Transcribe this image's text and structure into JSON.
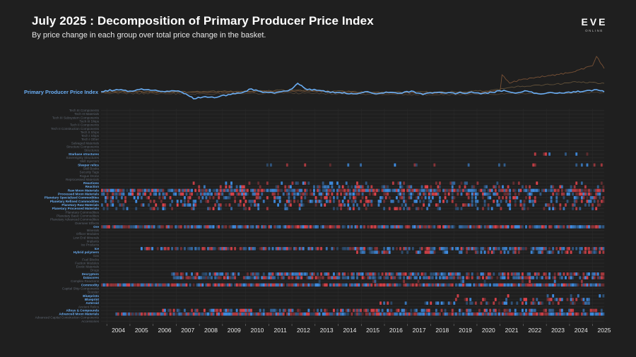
{
  "header": {
    "title": "July 2025 : Decomposition of Primary Producer Price Index",
    "subtitle": "By price change in each group over total price change in the basket.",
    "logo_text": "EVE",
    "logo_subtext": "ONLINE"
  },
  "colors": {
    "background": "#1f1f1f",
    "index_line": "#6aaef5",
    "label_highlight": "#6aaef5",
    "label_dim": "#5d6570",
    "positive": "#e0434b",
    "negative": "#3f8fe6",
    "context_lines": [
      "#8a5a3a",
      "#6f5a3e",
      "#5a4a3a"
    ]
  },
  "chart_data": {
    "type": "heatmap",
    "title": "July 2025 : Decomposition of Primary Producer Price Index",
    "subtitle": "By price change in each group over total price change in the basket.",
    "x": {
      "type": "time",
      "range": [
        "2003-10",
        "2025-07"
      ],
      "ticks": [
        "2004",
        "2005",
        "2006",
        "2007",
        "2008",
        "2009",
        "2010",
        "2011",
        "2012",
        "2013",
        "2014",
        "2015",
        "2016",
        "2017",
        "2018",
        "2019",
        "2020",
        "2021",
        "2022",
        "2023",
        "2024",
        "2025"
      ]
    },
    "index_series": {
      "name": "Primary Producer Price Index",
      "x": [
        "2003-10",
        "2004-06",
        "2005-01",
        "2005-07",
        "2006-01",
        "2006-07",
        "2007-01",
        "2007-06",
        "2007-10",
        "2008-04",
        "2008-10",
        "2009-04",
        "2009-10",
        "2010-04",
        "2010-10",
        "2011-04",
        "2011-10",
        "2012-01",
        "2012-04",
        "2012-09",
        "2013-03",
        "2013-09",
        "2014-03",
        "2014-09",
        "2015-03",
        "2015-09",
        "2016-03",
        "2016-09",
        "2017-03",
        "2017-09",
        "2018-03",
        "2018-09",
        "2019-03",
        "2019-09",
        "2020-03",
        "2020-09",
        "2021-03",
        "2021-09",
        "2022-03",
        "2022-09",
        "2023-03",
        "2023-09",
        "2024-03",
        "2024-09",
        "2025-03",
        "2025-07"
      ],
      "y": [
        100,
        103,
        101,
        104,
        102,
        100,
        101,
        97,
        90,
        93,
        92,
        96,
        98,
        104,
        99,
        98,
        101,
        104,
        112,
        103,
        102,
        99,
        98,
        97,
        100,
        97,
        99,
        98,
        101,
        96,
        99,
        98,
        98,
        99,
        97,
        99,
        102,
        98,
        101,
        97,
        99,
        98,
        100,
        101,
        103,
        100
      ]
    },
    "context_series": [
      {
        "x": [
          "2003-10",
          "2008-01",
          "2012-01",
          "2016-01",
          "2019-01",
          "2020-06",
          "2021-01",
          "2021-02",
          "2021-06",
          "2022-01",
          "2023-01",
          "2024-01",
          "2024-06",
          "2025-01",
          "2025-03",
          "2025-07"
        ],
        "y": [
          100,
          99,
          101,
          98,
          98,
          99,
          102,
          124,
          112,
          118,
          122,
          127,
          131,
          137,
          150,
          133
        ]
      },
      {
        "x": [
          "2003-10",
          "2008-01",
          "2012-01",
          "2016-01",
          "2019-01",
          "2020-06",
          "2021-06",
          "2022-06",
          "2023-06",
          "2024-06",
          "2025-07"
        ],
        "y": [
          100,
          100,
          102,
          99,
          100,
          101,
          106,
          109,
          111,
          114,
          112
        ]
      },
      {
        "x": [
          "2003-10",
          "2008-01",
          "2012-01",
          "2016-01",
          "2019-01",
          "2021-01",
          "2023-01",
          "2025-07"
        ],
        "y": [
          98,
          97,
          98,
          96,
          96,
          97,
          98,
          99
        ]
      }
    ],
    "rows": [
      {
        "label": "Tech III Components",
        "hl": false,
        "x0": 0,
        "d": 0
      },
      {
        "label": "Tech III Materials",
        "hl": false,
        "x0": 0,
        "d": 0
      },
      {
        "label": "Tech III Subsystem Components",
        "hl": false,
        "x0": 0,
        "d": 0
      },
      {
        "label": "Tech III Ships",
        "hl": false,
        "x0": 0,
        "d": 0
      },
      {
        "label": "Tech II Components",
        "hl": false,
        "x0": 0,
        "d": 0
      },
      {
        "label": "Tech II Construction Components",
        "hl": false,
        "x0": 0,
        "d": 0
      },
      {
        "label": "Tech II Ships",
        "hl": false,
        "x0": 0,
        "d": 0
      },
      {
        "label": "Tech I Ships",
        "hl": false,
        "x0": 0,
        "d": 0
      },
      {
        "label": "Tech I Other",
        "hl": false,
        "x0": 0,
        "d": 0
      },
      {
        "label": "Salvaged Materials",
        "hl": false,
        "x0": 0,
        "d": 0
      },
      {
        "label": "Structure Components",
        "hl": false,
        "x0": 0,
        "d": 0
      },
      {
        "label": "Structures",
        "hl": false,
        "x0": 0,
        "d": 0
      },
      {
        "label": "Starbase structures",
        "hl": true,
        "x0": 0.84,
        "d": 0.25
      },
      {
        "label": "Sovereignty Structures",
        "hl": false,
        "x0": 0,
        "d": 0
      },
      {
        "label": "Skill Injectors",
        "hl": false,
        "x0": 0,
        "d": 0
      },
      {
        "label": "Sleeper relics",
        "hl": true,
        "x0": 0.33,
        "d": 0.12
      },
      {
        "label": "Skill Books",
        "hl": false,
        "x0": 0,
        "d": 0
      },
      {
        "label": "Security Tags",
        "hl": false,
        "x0": 0,
        "d": 0
      },
      {
        "label": "Rogue Drone",
        "hl": false,
        "x0": 0,
        "d": 0
      },
      {
        "label": "Reprocessed Materials",
        "hl": false,
        "x0": 0,
        "d": 0
      },
      {
        "label": "Reactions",
        "hl": true,
        "x0": 0.18,
        "d": 0.15
      },
      {
        "label": "Reaction",
        "hl": true,
        "x0": 0.18,
        "d": 0.3
      },
      {
        "label": "Raw Moon Materials",
        "hl": true,
        "x0": 0.0,
        "d": 0.9
      },
      {
        "label": "Processed Moon Materials",
        "hl": true,
        "x0": 0.0,
        "d": 0.6
      },
      {
        "label": "Planetary Specialized Commodities",
        "hl": true,
        "x0": 0.0,
        "d": 0.4
      },
      {
        "label": "Planetary Refined Commodities",
        "hl": true,
        "x0": 0.0,
        "d": 0.35
      },
      {
        "label": "Planetary Raw Materials",
        "hl": true,
        "x0": 0.0,
        "d": 0.3
      },
      {
        "label": "Planetary Processed Materials",
        "hl": true,
        "x0": 0.0,
        "d": 0.25
      },
      {
        "label": "Planetary Commodities",
        "hl": false,
        "x0": 0,
        "d": 0
      },
      {
        "label": "Planetary Basic Commodities",
        "hl": false,
        "x0": 0,
        "d": 0
      },
      {
        "label": "Planetary Advanced Commodities",
        "hl": false,
        "x0": 0,
        "d": 0
      },
      {
        "label": "Overseer Effects",
        "hl": false,
        "x0": 0,
        "d": 0
      },
      {
        "label": "Ore",
        "hl": true,
        "x0": 0.0,
        "d": 0.85
      },
      {
        "label": "Minerals",
        "hl": false,
        "x0": 0,
        "d": 0
      },
      {
        "label": "Officer Modules",
        "hl": false,
        "x0": 0,
        "d": 0
      },
      {
        "label": "Low End Minerals",
        "hl": false,
        "x0": 0,
        "d": 0
      },
      {
        "label": "Implants",
        "hl": false,
        "x0": 0,
        "d": 0
      },
      {
        "label": "Ice Products",
        "hl": false,
        "x0": 0,
        "d": 0
      },
      {
        "label": "Ice",
        "hl": true,
        "x0": 0.08,
        "d": 0.7
      },
      {
        "label": "Hybrid polymers",
        "hl": true,
        "x0": 0.5,
        "d": 0.5
      },
      {
        "label": "Gas",
        "hl": false,
        "x0": 0,
        "d": 0
      },
      {
        "label": "Fuel Blocks",
        "hl": false,
        "x0": 0,
        "d": 0
      },
      {
        "label": "Faction Modules",
        "hl": false,
        "x0": 0,
        "d": 0
      },
      {
        "label": "Exotic Materials",
        "hl": false,
        "x0": 0,
        "d": 0
      },
      {
        "label": "Drugs",
        "hl": false,
        "x0": 0,
        "d": 0
      },
      {
        "label": "Decryptors",
        "hl": true,
        "x0": 0.14,
        "d": 0.7
      },
      {
        "label": "Datacores",
        "hl": true,
        "x0": 0.14,
        "d": 0.7
      },
      {
        "label": "Complex Reactions",
        "hl": false,
        "x0": 0.4,
        "d": 0.1
      },
      {
        "label": "Commodity",
        "hl": true,
        "x0": 0.0,
        "d": 0.95
      },
      {
        "label": "Capital Ship Components",
        "hl": false,
        "x0": 0,
        "d": 0
      },
      {
        "label": "Booster",
        "hl": false,
        "x0": 0,
        "d": 0
      },
      {
        "label": "Blueprints",
        "hl": true,
        "x0": 0.7,
        "d": 0.1
      },
      {
        "label": "Blueprint",
        "hl": true,
        "x0": 0.7,
        "d": 0.3
      },
      {
        "label": "Asteroid",
        "hl": true,
        "x0": 0.55,
        "d": 0.35
      },
      {
        "label": "Ancient Relics",
        "hl": false,
        "x0": 0,
        "d": 0
      },
      {
        "label": "Alloys & Compounds",
        "hl": true,
        "x0": 0.12,
        "d": 0.5
      },
      {
        "label": "Advanced Moon Materials",
        "hl": true,
        "x0": 0.03,
        "d": 0.95
      },
      {
        "label": "Advanced Capital Construction Components",
        "hl": false,
        "x0": 0,
        "d": 0
      },
      {
        "label": "Accessories",
        "hl": false,
        "x0": 0,
        "d": 0
      }
    ]
  }
}
